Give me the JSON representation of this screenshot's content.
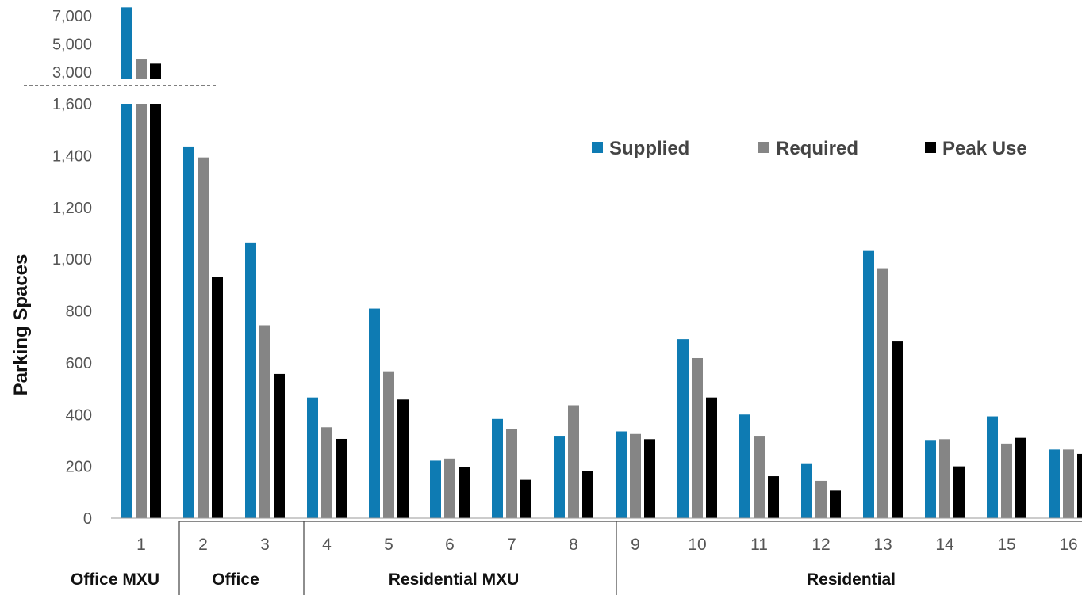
{
  "chart_data": {
    "type": "bar",
    "ylabel": "Parking Spaces",
    "y_axis_break": true,
    "ylim_lower": [
      0,
      1600
    ],
    "ylim_upper": [
      3000,
      7000
    ],
    "lower_ticks": [
      "0",
      "200",
      "400",
      "600",
      "800",
      "1,000",
      "1,200",
      "1,400",
      "1,600"
    ],
    "upper_ticks": [
      "3,000",
      "5,000",
      "7,000"
    ],
    "categories": [
      "1",
      "2",
      "3",
      "4",
      "5",
      "6",
      "7",
      "8",
      "9",
      "10",
      "11",
      "12",
      "13",
      "14",
      "15",
      "16"
    ],
    "series": [
      {
        "name": "Supplied",
        "color": "#0e7bb3",
        "values": [
          7600,
          1435,
          1062,
          466,
          809,
          222,
          383,
          318,
          335,
          691,
          400,
          212,
          1032,
          302,
          393,
          265
        ]
      },
      {
        "name": "Required",
        "color": "#858585",
        "values": [
          3900,
          1393,
          745,
          351,
          567,
          230,
          343,
          436,
          325,
          618,
          318,
          144,
          965,
          305,
          288,
          265
        ]
      },
      {
        "name": "Peak Use",
        "color": "#000000",
        "values": [
          3600,
          930,
          557,
          306,
          458,
          198,
          148,
          183,
          305,
          466,
          162,
          106,
          682,
          200,
          310,
          248
        ]
      }
    ],
    "groups": [
      {
        "label": "Office MXU",
        "categories": [
          "1"
        ]
      },
      {
        "label": "Office",
        "categories": [
          "2",
          "3"
        ]
      },
      {
        "label": "Residential MXU",
        "categories": [
          "4",
          "5",
          "6",
          "7",
          "8"
        ]
      },
      {
        "label": "Residential",
        "categories": [
          "9",
          "10",
          "11",
          "12",
          "13",
          "14",
          "15",
          "16"
        ]
      }
    ],
    "legend_position": "top-right",
    "grid": false
  }
}
